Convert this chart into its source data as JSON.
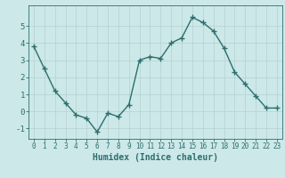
{
  "x": [
    0,
    1,
    2,
    3,
    4,
    5,
    6,
    7,
    8,
    9,
    10,
    11,
    12,
    13,
    14,
    15,
    16,
    17,
    18,
    19,
    20,
    21,
    22,
    23
  ],
  "y": [
    3.8,
    2.5,
    1.2,
    0.5,
    -0.2,
    -0.4,
    -1.2,
    -0.1,
    -0.3,
    0.4,
    3.0,
    3.2,
    3.1,
    4.0,
    4.3,
    5.5,
    5.2,
    4.7,
    3.7,
    2.3,
    1.6,
    0.9,
    0.2,
    0.2
  ],
  "line_color": "#2d6e6e",
  "marker": "+",
  "marker_size": 4,
  "marker_edge_width": 1.0,
  "line_width": 1.0,
  "bg_color": "#cce8e8",
  "grid_color": "#b8d4d4",
  "xlabel": "Humidex (Indice chaleur)",
  "xlabel_fontsize": 7,
  "xlabel_color": "#2d6e6e",
  "tick_label_color": "#2d6e6e",
  "tick_fontsize": 5.5,
  "ytick_fontsize": 6.5,
  "ylim": [
    -1.6,
    6.2
  ],
  "xlim": [
    -0.5,
    23.5
  ],
  "yticks": [
    -1,
    0,
    1,
    2,
    3,
    4,
    5
  ],
  "xticks": [
    0,
    1,
    2,
    3,
    4,
    5,
    6,
    7,
    8,
    9,
    10,
    11,
    12,
    13,
    14,
    15,
    16,
    17,
    18,
    19,
    20,
    21,
    22,
    23
  ]
}
